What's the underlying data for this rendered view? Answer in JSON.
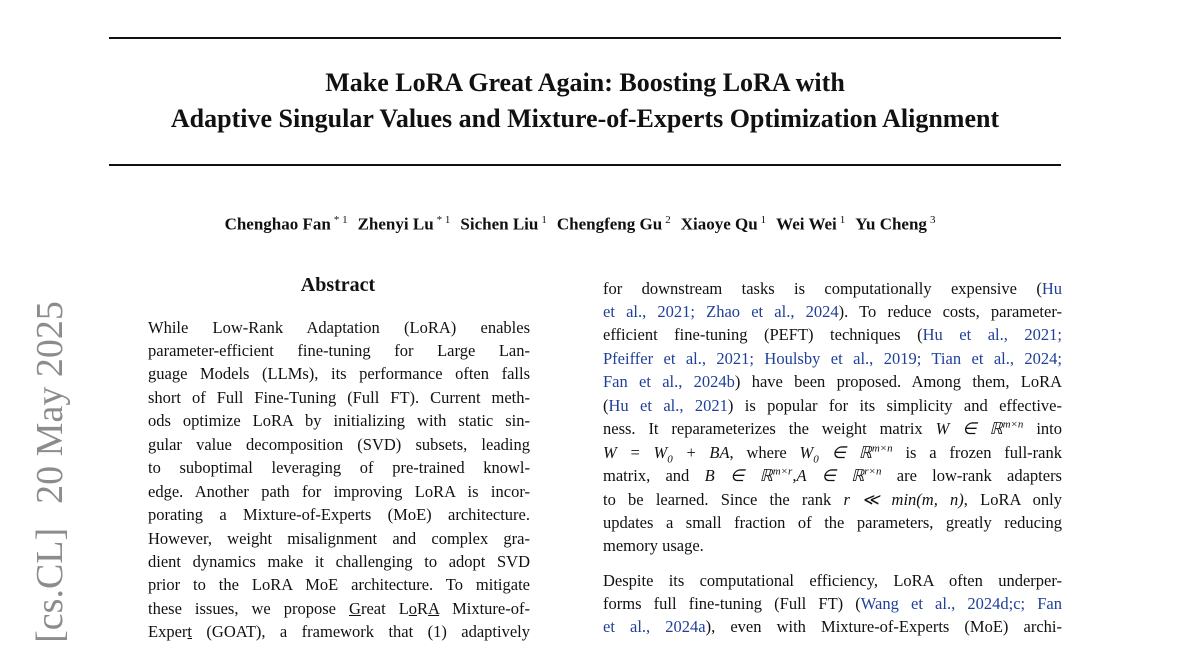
{
  "arxiv": {
    "category": "[cs.CL]",
    "date": "20 May 2025"
  },
  "header": {
    "title": [
      "Make LoRA Great Again: Boosting LoRA with",
      "Adaptive Singular Values and Mixture-of-Experts Optimization Alignment"
    ]
  },
  "authors": [
    {
      "name": "Chenghao Fan",
      "marks": "* 1"
    },
    {
      "name": "Zhenyi Lu",
      "marks": "* 1"
    },
    {
      "name": "Sichen Liu",
      "marks": "1"
    },
    {
      "name": "Chengfeng Gu",
      "marks": "2"
    },
    {
      "name": "Xiaoye Qu",
      "marks": "1"
    },
    {
      "name": "Wei Wei",
      "marks": "1"
    },
    {
      "name": "Yu Cheng",
      "marks": "3"
    }
  ],
  "abstract": {
    "heading": "Abstract",
    "lines": [
      [
        "While Low-Rank Adaptation (LoRA) enables"
      ],
      [
        "parameter-efficient fine-tuning for Large Lan-"
      ],
      [
        "guage Models (LLMs), its performance often falls"
      ],
      [
        "short of Full Fine-Tuning (Full FT). Current meth-"
      ],
      [
        "ods optimize LoRA by initializing with static sin-"
      ],
      [
        "gular value decomposition (SVD) subsets, leading"
      ],
      [
        "to suboptimal leveraging of pre-trained knowl-"
      ],
      [
        "edge. Another path for improving LoRA is incor-"
      ],
      [
        "porating a Mixture-of-Experts (MoE) architecture."
      ],
      [
        "However, weight misalignment and complex gra-"
      ],
      [
        "dient dynamics make it challenging to adopt SVD"
      ],
      [
        "prior to the LoRA MoE architecture. To mitigate"
      ],
      [
        "these issues, we propose ",
        {
          "u": "G"
        },
        "reat L",
        {
          "u": "o"
        },
        "R",
        {
          "u": "A"
        },
        " Mixture-of-"
      ],
      [
        "Exper",
        {
          "u": "t"
        },
        " (GOAT), a framework that (1) adaptively"
      ]
    ]
  },
  "body": {
    "paragraphs": [
      {
        "lines": [
          [
            "for downstream tasks is computationally expensive (",
            {
              "link": "Hu"
            }
          ],
          [
            {
              "link": "et al., 2021; Zhao et al., 2024"
            },
            "). To reduce costs, parameter-"
          ],
          [
            "efficient fine-tuning (PEFT) techniques (",
            {
              "link": "Hu et al., 2021;"
            }
          ],
          [
            {
              "link": "Pfeiffer et al., 2021; Houlsby et al., 2019; Tian et al., 2024;"
            }
          ],
          [
            {
              "link": "Fan et al., 2024b"
            },
            ") have been proposed. Among them, LoRA"
          ],
          [
            "(",
            {
              "link": "Hu et al., 2021"
            },
            ") is popular for its simplicity and effective-"
          ],
          [
            "ness. It reparameterizes the weight matrix ",
            {
              "math": "W ∈ ℝ"
            },
            {
              "sup": "m×n"
            },
            " into"
          ],
          [
            {
              "math": "W = W"
            },
            {
              "sub": "0"
            },
            {
              "math": " + BA"
            },
            ", where ",
            {
              "math": "W"
            },
            {
              "sub": "0"
            },
            {
              "math": " ∈ ℝ"
            },
            {
              "sup": "m×n"
            },
            " is a frozen full-rank"
          ],
          [
            "matrix, and ",
            {
              "math": "B ∈ ℝ"
            },
            {
              "sup": "m×r"
            },
            {
              "math": ",A ∈ ℝ"
            },
            {
              "sup": "r×n"
            },
            " are low-rank adapters"
          ],
          [
            "to be learned. Since the rank ",
            {
              "math": "r ≪ min(m, n)"
            },
            ", LoRA only"
          ],
          [
            "updates a small fraction of the parameters, greatly reducing"
          ],
          [
            "memory usage."
          ]
        ]
      },
      {
        "lines": [
          [
            "Despite its computational efficiency, LoRA often underper-"
          ],
          [
            "forms full fine-tuning (Full FT) (",
            {
              "link": "Wang et al., 2024d;c; Fan"
            }
          ],
          [
            {
              "link": "et al., 2024a"
            },
            "), even with Mixture-of-Experts (MoE) archi-"
          ]
        ]
      }
    ]
  }
}
